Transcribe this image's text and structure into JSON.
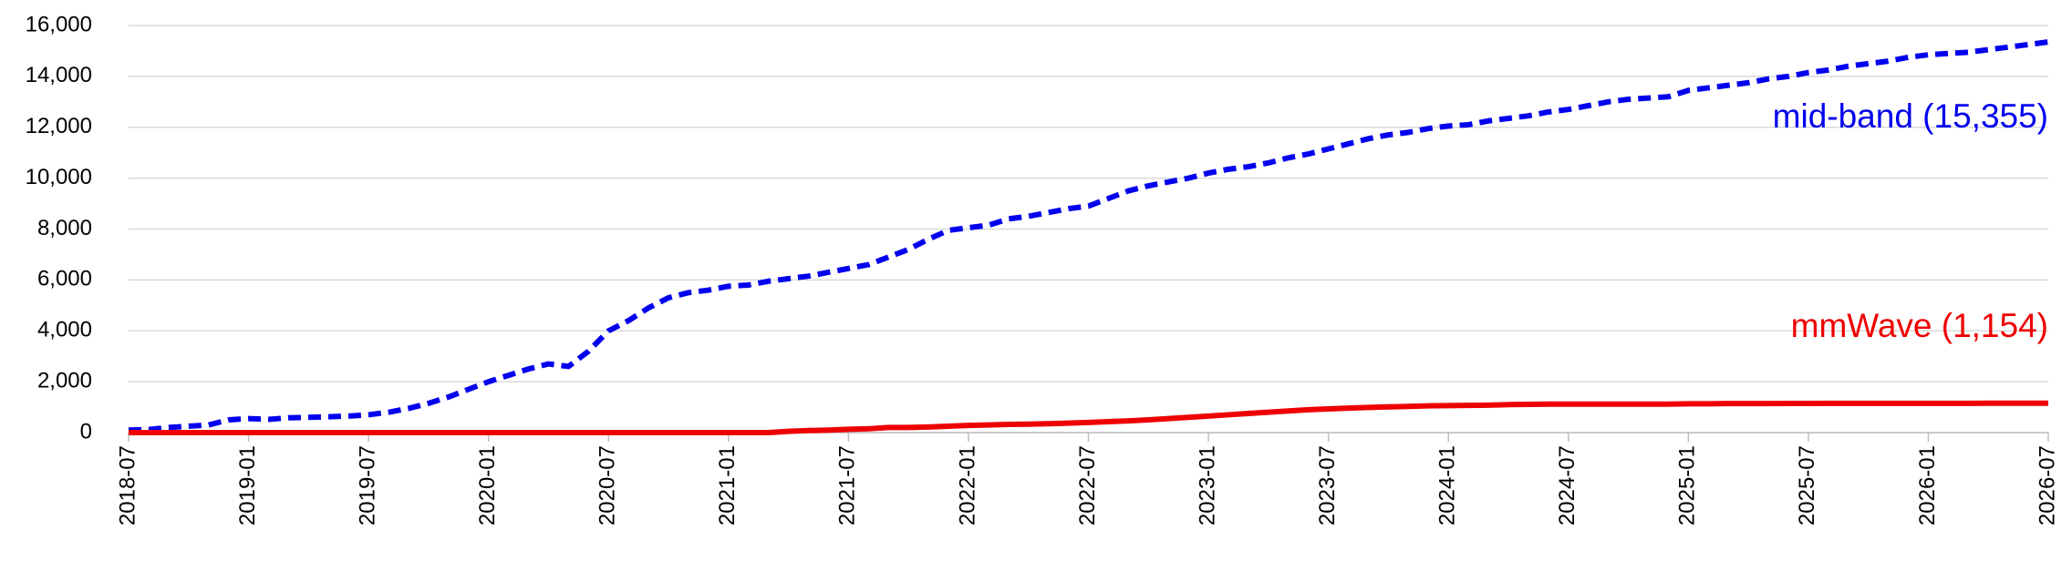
{
  "chart_data": {
    "type": "line",
    "x": [
      "2018-07",
      "2018-08",
      "2018-09",
      "2018-10",
      "2018-11",
      "2018-12",
      "2019-01",
      "2019-02",
      "2019-03",
      "2019-04",
      "2019-05",
      "2019-06",
      "2019-07",
      "2019-08",
      "2019-09",
      "2019-10",
      "2019-11",
      "2019-12",
      "2020-01",
      "2020-02",
      "2020-03",
      "2020-04",
      "2020-05",
      "2020-06",
      "2020-07",
      "2020-08",
      "2020-09",
      "2020-10",
      "2020-11",
      "2020-12",
      "2021-01",
      "2021-02",
      "2021-03",
      "2021-04",
      "2021-05",
      "2021-06",
      "2021-07",
      "2021-08",
      "2021-09",
      "2021-10",
      "2021-11",
      "2021-12",
      "2022-01",
      "2022-02",
      "2022-03",
      "2022-04",
      "2022-05",
      "2022-06",
      "2022-07",
      "2022-08",
      "2022-09",
      "2022-10",
      "2022-11",
      "2022-12",
      "2023-01",
      "2023-02",
      "2023-03",
      "2023-04",
      "2023-05",
      "2023-06",
      "2023-07",
      "2023-08",
      "2023-09",
      "2023-10",
      "2023-11",
      "2023-12",
      "2024-01",
      "2024-02",
      "2024-03",
      "2024-04",
      "2024-05",
      "2024-06",
      "2024-07",
      "2024-08",
      "2024-09",
      "2024-10",
      "2024-11",
      "2024-12",
      "2025-01",
      "2025-02",
      "2025-03",
      "2025-04",
      "2025-05",
      "2025-06",
      "2025-07",
      "2025-08",
      "2025-09",
      "2025-10",
      "2025-11",
      "2025-12",
      "2026-01",
      "2026-02",
      "2026-03",
      "2026-04",
      "2026-05",
      "2026-06",
      "2026-07"
    ],
    "xticks": [
      "2018-07",
      "2019-01",
      "2019-07",
      "2020-01",
      "2020-07",
      "2021-01",
      "2021-07",
      "2022-01",
      "2022-07",
      "2023-01",
      "2023-07",
      "2024-01",
      "2024-07",
      "2025-01",
      "2025-07",
      "2026-01",
      "2026-07"
    ],
    "series": [
      {
        "name": "mid-band (15,355)",
        "color": "#0000ee",
        "dashed": true,
        "values": [
          100,
          120,
          200,
          250,
          300,
          500,
          550,
          520,
          580,
          600,
          620,
          650,
          700,
          800,
          950,
          1150,
          1400,
          1700,
          2000,
          2250,
          2500,
          2700,
          2600,
          3200,
          4000,
          4400,
          4900,
          5300,
          5500,
          5600,
          5750,
          5800,
          5950,
          6050,
          6150,
          6300,
          6450,
          6600,
          6900,
          7200,
          7600,
          7950,
          8050,
          8150,
          8400,
          8500,
          8650,
          8800,
          8900,
          9200,
          9500,
          9700,
          9850,
          10000,
          10200,
          10350,
          10450,
          10600,
          10800,
          10950,
          11150,
          11350,
          11550,
          11700,
          11800,
          11950,
          12050,
          12100,
          12250,
          12350,
          12450,
          12600,
          12700,
          12850,
          13000,
          13100,
          13150,
          13200,
          13450,
          13550,
          13650,
          13750,
          13900,
          14000,
          14150,
          14250,
          14400,
          14500,
          14600,
          14750,
          14850,
          14900,
          14950,
          15050,
          15150,
          15250,
          15355
        ]
      },
      {
        "name": "mmWave (1,154)",
        "color": "#ee0000",
        "dashed": false,
        "values": [
          0,
          0,
          0,
          0,
          0,
          0,
          0,
          0,
          0,
          0,
          0,
          0,
          0,
          0,
          0,
          0,
          0,
          0,
          0,
          0,
          0,
          0,
          0,
          0,
          0,
          0,
          0,
          0,
          0,
          0,
          0,
          0,
          0,
          50,
          80,
          100,
          130,
          150,
          200,
          200,
          220,
          250,
          280,
          300,
          320,
          330,
          350,
          370,
          400,
          430,
          460,
          500,
          550,
          600,
          650,
          700,
          750,
          800,
          850,
          900,
          930,
          960,
          990,
          1010,
          1030,
          1050,
          1060,
          1070,
          1080,
          1100,
          1110,
          1120,
          1120,
          1120,
          1120,
          1120,
          1120,
          1120,
          1130,
          1130,
          1140,
          1140,
          1140,
          1145,
          1145,
          1150,
          1150,
          1150,
          1150,
          1150,
          1150,
          1152,
          1152,
          1153,
          1153,
          1154,
          1154
        ]
      }
    ],
    "ylim": [
      0,
      16000
    ],
    "yticks": [
      0,
      {
        "value": 2000,
        "label": "2,000"
      },
      {
        "value": 4000,
        "label": "4,000"
      },
      {
        "value": 6000,
        "label": "6,000"
      },
      {
        "value": 8000,
        "label": "8,000"
      },
      {
        "value": 10000,
        "label": "10,000"
      },
      {
        "value": 12000,
        "label": "12,000"
      },
      {
        "value": 14000,
        "label": "14,000"
      },
      {
        "value": 16000,
        "label": "16,000"
      }
    ],
    "grid": true
  }
}
